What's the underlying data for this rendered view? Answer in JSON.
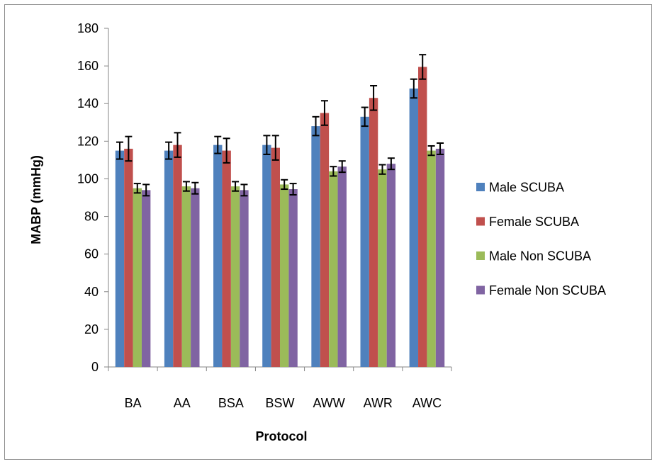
{
  "chart_data": {
    "type": "bar",
    "title": "",
    "xlabel": "Protocol",
    "ylabel": "MABP (mmHg)",
    "ylim": [
      0,
      180
    ],
    "yticks": [
      0,
      20,
      40,
      60,
      80,
      100,
      120,
      140,
      160,
      180
    ],
    "categories": [
      "BA",
      "AA",
      "BSA",
      "BSW",
      "AWW",
      "AWR",
      "AWC"
    ],
    "series": [
      {
        "name": "Male SCUBA",
        "color": "#4f81bd",
        "values": [
          115,
          115,
          118,
          118,
          128,
          133,
          148
        ],
        "errors": [
          4.5,
          4.5,
          4.5,
          5,
          5,
          5,
          5
        ]
      },
      {
        "name": "Female SCUBA",
        "color": "#c0504d",
        "values": [
          116,
          118,
          115,
          116.5,
          135,
          143,
          159.5
        ],
        "errors": [
          6.5,
          6.5,
          6.5,
          6.5,
          6.5,
          6.5,
          6.5
        ]
      },
      {
        "name": "Male Non SCUBA",
        "color": "#9bbb59",
        "values": [
          95,
          96,
          96,
          97,
          104,
          105,
          115
        ],
        "errors": [
          2.5,
          2.5,
          2.5,
          2.5,
          2.5,
          2.5,
          2.5
        ]
      },
      {
        "name": "Female Non SCUBA",
        "color": "#8064a2",
        "values": [
          94,
          95,
          94,
          94.5,
          106.5,
          108,
          116
        ],
        "errors": [
          3,
          3,
          3,
          3,
          3,
          3,
          3
        ]
      }
    ],
    "grid": false,
    "legend_position": "right"
  }
}
